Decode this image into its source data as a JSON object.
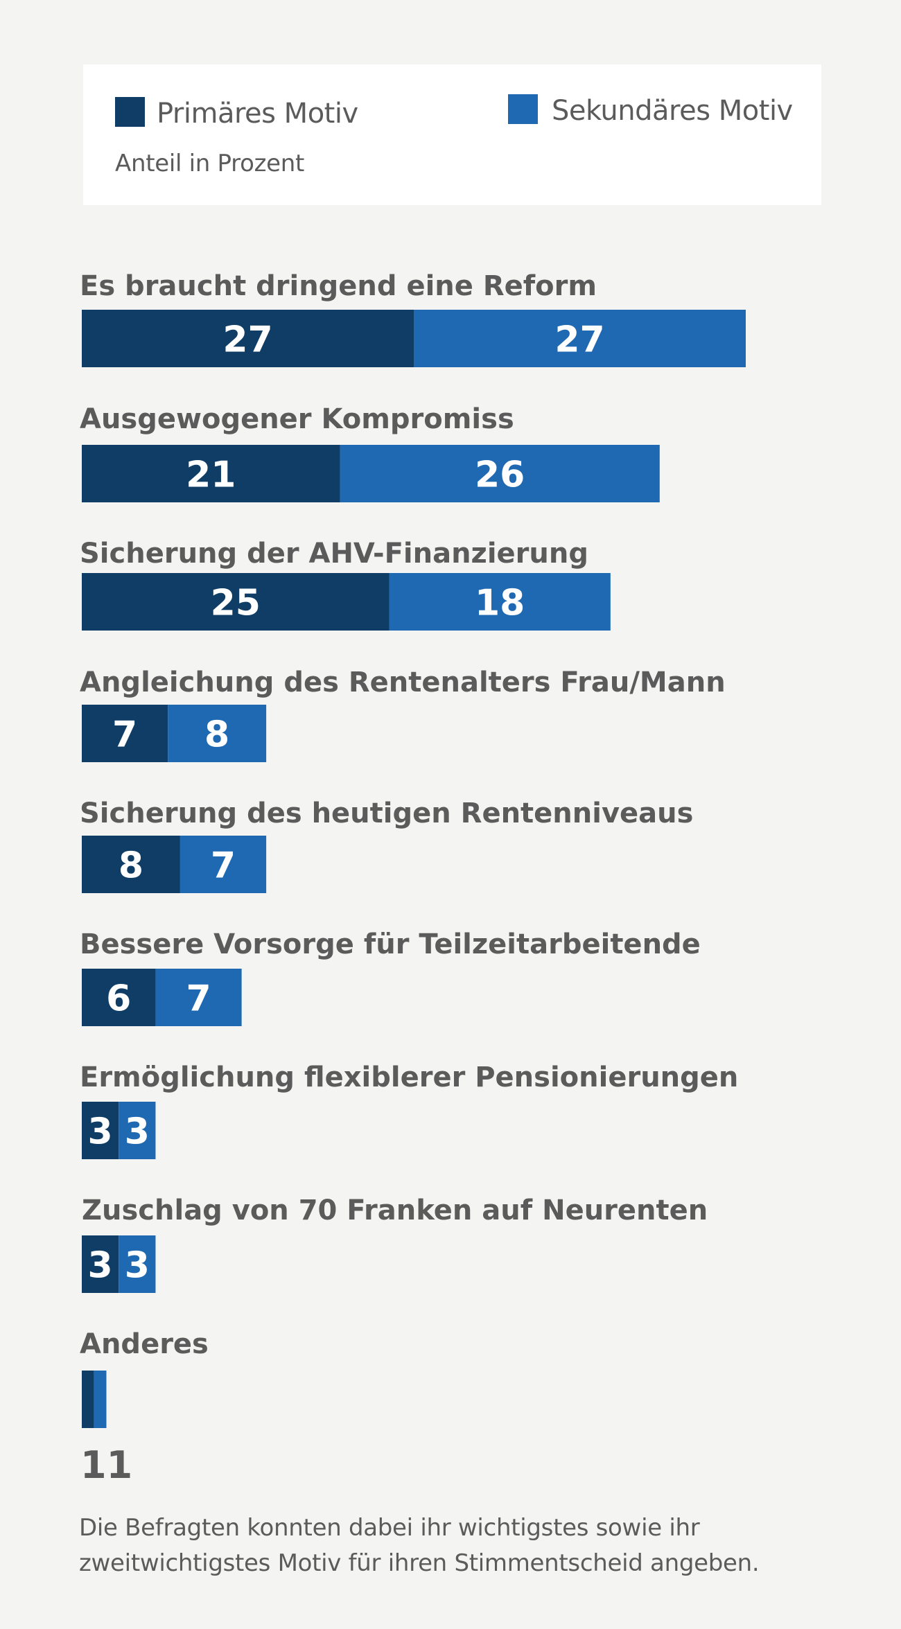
{
  "legend": {
    "primary_label": "Primäres Motiv",
    "secondary_label": "Sekundäres Motiv",
    "subtitle": "Anteil in Prozent"
  },
  "colors": {
    "primary": "#0f3d66",
    "secondary": "#1f69b2",
    "label_text": "#5b5b5b",
    "value_text": "#ffffff",
    "background": "#f4f4f2"
  },
  "chart_data": {
    "type": "bar",
    "orientation": "horizontal",
    "stacked": true,
    "xlim": [
      0,
      54
    ],
    "categories": [
      "Es braucht dringend eine Reform",
      "Ausgewogener Kompromiss",
      "Sicherung der AHV-Finanzierung",
      "Angleichung des Rentenalters Frau/Mann",
      "Sicherung des heutigen Rentenniveaus",
      "Bessere Vorsorge für Teilzeitarbeitende",
      "Ermöglichung flexiblerer Pensionierungen",
      "Zuschlag von 70 Franken auf Neurenten",
      "Anderes"
    ],
    "series": [
      {
        "name": "Primäres Motiv",
        "values": [
          27,
          21,
          25,
          7,
          8,
          6,
          3,
          3,
          1
        ]
      },
      {
        "name": "Sekundäres Motiv",
        "values": [
          27,
          26,
          18,
          8,
          7,
          7,
          3,
          3,
          1
        ]
      }
    ],
    "data_labels_outside": "11"
  },
  "note": "Die Befragten konnten dabei ihr wichtigstes sowie ihr zweitwichtigstes Motiv für ihren Stimmentscheid angeben."
}
